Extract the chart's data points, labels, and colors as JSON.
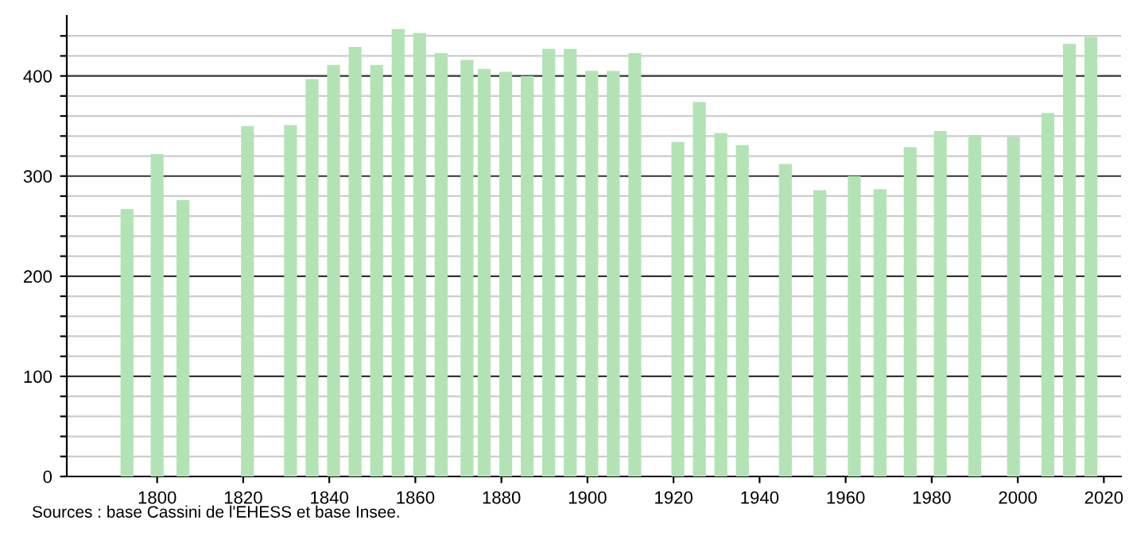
{
  "chart_data": {
    "type": "bar",
    "x": [
      1793,
      1800,
      1806,
      1821,
      1831,
      1836,
      1841,
      1846,
      1851,
      1856,
      1861,
      1866,
      1872,
      1876,
      1881,
      1886,
      1891,
      1896,
      1901,
      1906,
      1911,
      1921,
      1926,
      1931,
      1936,
      1946,
      1954,
      1962,
      1968,
      1975,
      1982,
      1990,
      1999,
      2007,
      2012,
      2017
    ],
    "values": [
      267,
      322,
      276,
      350,
      351,
      397,
      411,
      429,
      411,
      447,
      443,
      423,
      416,
      407,
      404,
      400,
      427,
      427,
      405,
      405,
      423,
      334,
      374,
      343,
      331,
      312,
      286,
      300,
      287,
      329,
      345,
      341,
      339,
      363,
      432,
      439
    ],
    "color": "#b3e3b5",
    "xlim": [
      1779,
      2024
    ],
    "xticks": [
      1800,
      1820,
      1840,
      1860,
      1880,
      1900,
      1920,
      1940,
      1960,
      1980,
      2000,
      2020
    ],
    "ylim": [
      0,
      460
    ],
    "yticks": [
      0,
      {
        "value": 20,
        "label": null
      },
      {
        "value": 40,
        "label": null
      },
      {
        "value": 60,
        "label": null
      },
      {
        "value": 80,
        "label": null
      },
      100,
      {
        "value": 120,
        "label": null
      },
      {
        "value": 140,
        "label": null
      },
      {
        "value": 160,
        "label": null
      },
      {
        "value": 180,
        "label": null
      },
      200,
      {
        "value": 220,
        "label": null
      },
      {
        "value": 240,
        "label": null
      },
      {
        "value": 260,
        "label": null
      },
      {
        "value": 280,
        "label": null
      },
      300,
      {
        "value": 320,
        "label": null
      },
      {
        "value": 340,
        "label": null
      },
      {
        "value": 360,
        "label": null
      },
      {
        "value": 380,
        "label": null
      },
      400,
      {
        "value": 420,
        "label": null
      },
      {
        "value": 440,
        "label": null
      }
    ],
    "grid": "y",
    "annotations": [
      "Sources : base Cassini de l'EHESS et base Insee."
    ]
  }
}
